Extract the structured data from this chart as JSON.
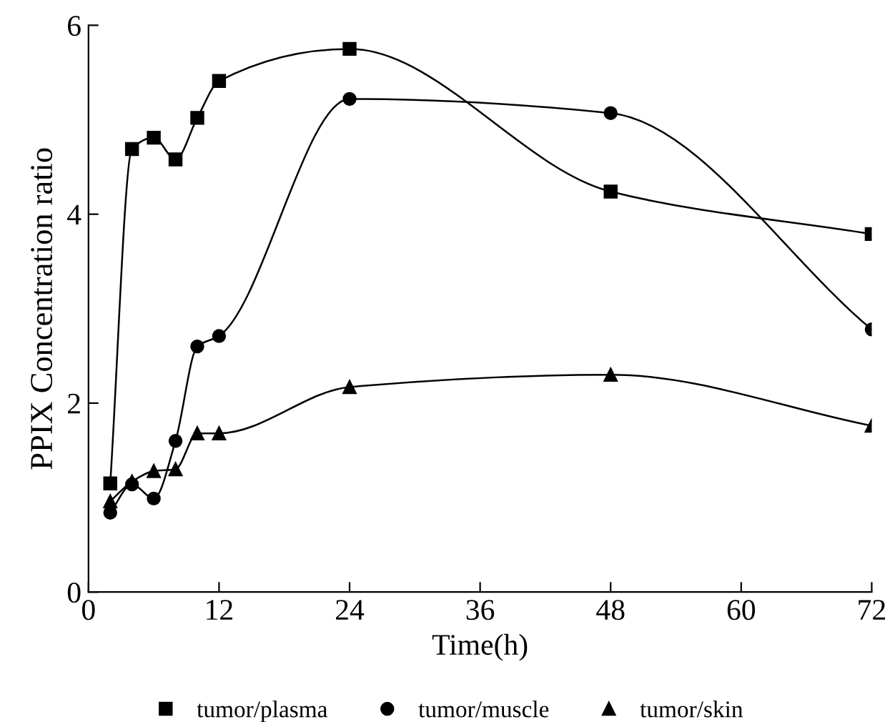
{
  "chart_data": {
    "type": "line",
    "xlabel": "Time(h)",
    "ylabel": "PPIX Concentration ratio",
    "x": [
      2,
      4,
      6,
      8,
      10,
      12,
      24,
      48,
      72
    ],
    "xlim": [
      0,
      72
    ],
    "xticks": [
      0,
      12,
      24,
      36,
      48,
      60,
      72
    ],
    "ylim": [
      0,
      6
    ],
    "yticks": [
      0,
      2,
      4,
      6
    ],
    "grid": false,
    "legend": "bottom",
    "series": [
      {
        "name": "tumor/plasma",
        "color": "#000000",
        "marker": "square",
        "values": [
          1.15,
          4.69,
          4.81,
          4.58,
          5.02,
          5.41,
          5.75,
          4.24,
          3.79
        ]
      },
      {
        "name": "tumor/muscle",
        "color": "#000000",
        "marker": "circle",
        "values": [
          0.84,
          1.14,
          0.99,
          1.6,
          2.6,
          2.71,
          5.22,
          5.07,
          2.78
        ]
      },
      {
        "name": "tumor/skin",
        "color": "#000000",
        "marker": "triangle",
        "values": [
          0.96,
          1.17,
          1.28,
          1.3,
          1.68,
          1.68,
          2.17,
          2.3,
          1.76
        ]
      }
    ]
  }
}
